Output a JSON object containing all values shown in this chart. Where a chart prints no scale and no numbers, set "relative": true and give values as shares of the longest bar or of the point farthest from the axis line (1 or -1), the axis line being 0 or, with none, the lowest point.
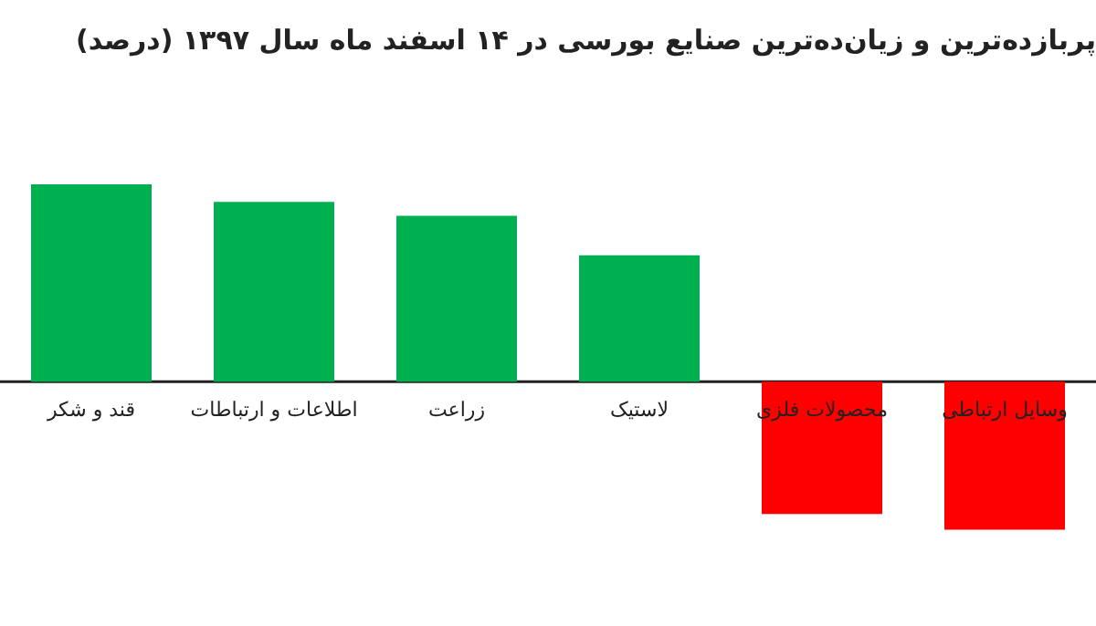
{
  "chart_data": {
    "type": "bar",
    "title": "پربازده‌ترین و زیان‌ده‌ترین صنایع بورسی در ۱۴ اسفند ماه سال ۱۳۹۷ (درصد)",
    "categories": [
      "قند و شکر",
      "اطلاعات و ارتباطات",
      "زراعت",
      "لاستیک",
      "محصولات فلزی",
      "وسایل ارتباطی"
    ],
    "values": [
      1,
      0.91,
      0.84,
      0.64,
      -0.67,
      -0.75
    ],
    "colors": [
      "#00b050",
      "#00b050",
      "#00b050",
      "#00b050",
      "#ff0000",
      "#ff0000"
    ],
    "relative": true
  }
}
